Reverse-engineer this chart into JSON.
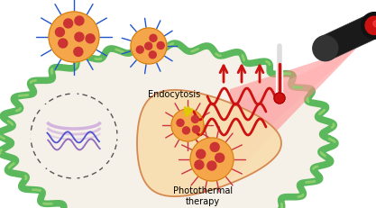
{
  "bg_color": "#ffffff",
  "cell_membrane_color": "#5cb85c",
  "cell_membrane_inner_color": "#3a7d0a",
  "nanoparticle_body_color": "#f5a54a",
  "nanoparticle_core_color": "#cc3333",
  "spike_color_blue": "#2255cc",
  "spike_color_red": "#cc3344",
  "laser_body_color": "#1a1a1a",
  "laser_lens_color": "#cc1111",
  "heat_arrow_color": "#cc1111",
  "thermometer_color": "#cc1111",
  "wavy_color": "#cc1111",
  "endocytosis_arrow_color": "#ddcc00",
  "text_endocytosis": "Endocytosis",
  "text_photothermal": "Photothermal\ntherapy",
  "text_color": "#000000",
  "dna_color": "#8844bb",
  "nucleus_color": "#ccaadd",
  "figsize": [
    4.17,
    2.32
  ],
  "dpi": 100
}
